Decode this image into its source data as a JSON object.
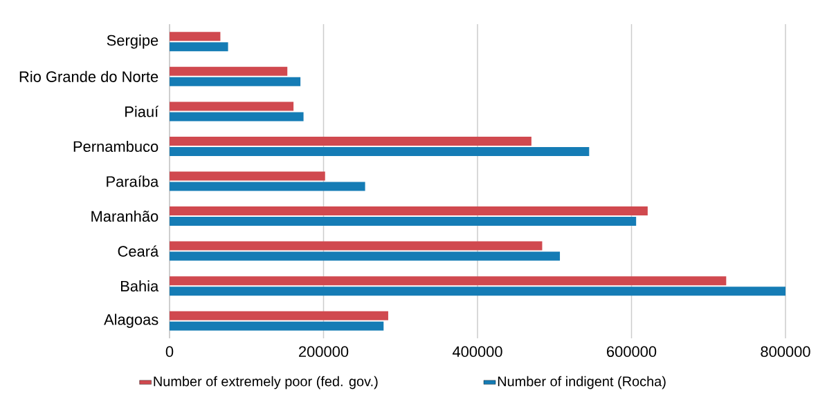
{
  "chart_data": {
    "type": "bar",
    "orientation": "horizontal",
    "categories": [
      "Sergipe",
      "Rio Grande do Norte",
      "Piauí",
      "Pernambuco",
      "Paraíba",
      "Maranhão",
      "Ceará",
      "Bahia",
      "Alagoas"
    ],
    "series": [
      {
        "name": "Number of extremely poor (fed.  gov.)",
        "color": "#d0494f",
        "values": [
          66000,
          153000,
          161000,
          470000,
          202000,
          621000,
          484000,
          723000,
          284000
        ]
      },
      {
        "name": "Number of indigent (Rocha)",
        "color": "#157cb5",
        "values": [
          76000,
          170000,
          174000,
          545000,
          254000,
          606000,
          507000,
          800000,
          278000
        ]
      }
    ],
    "xlim": [
      0,
      800000
    ],
    "xticks": [
      0,
      200000,
      400000,
      600000,
      800000
    ],
    "grid": "x",
    "legend": "bottom"
  }
}
